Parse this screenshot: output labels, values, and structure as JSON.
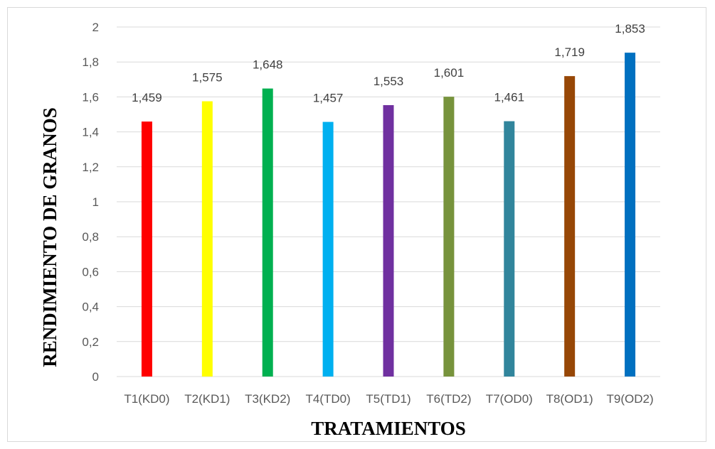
{
  "chart_data": {
    "type": "bar",
    "title": "",
    "xlabel": "TRATAMIENTOS",
    "ylabel": "RENDIMIENTO DE GRANOS",
    "categories": [
      "T1(KD0)",
      "T2(KD1)",
      "T3(KD2)",
      "T4(TD0)",
      "T5(TD1)",
      "T6(TD2)",
      "T7(OD0)",
      "T8(OD1)",
      "T9(OD2)"
    ],
    "values": [
      1.459,
      1.575,
      1.648,
      1.457,
      1.553,
      1.601,
      1.461,
      1.719,
      1.853
    ],
    "value_labels": [
      "1,459",
      "1,575",
      "1,648",
      "1,457",
      "1,553",
      "1,601",
      "1,461",
      "1,719",
      "1,853"
    ],
    "colors": [
      "#ff0000",
      "#ffff00",
      "#00b050",
      "#00b0f0",
      "#7030a0",
      "#77933c",
      "#31859c",
      "#974706",
      "#0070c0"
    ],
    "ylim": [
      0,
      2
    ],
    "yticks": [
      0,
      0.2,
      0.4,
      0.6,
      0.8,
      1,
      1.2,
      1.4,
      1.6,
      1.8,
      2
    ],
    "ytick_labels": [
      "0",
      "0,2",
      "0,4",
      "0,6",
      "0,8",
      "1",
      "1,2",
      "1,4",
      "1,6",
      "1,8",
      "2"
    ],
    "grid": true,
    "legend": "none"
  }
}
